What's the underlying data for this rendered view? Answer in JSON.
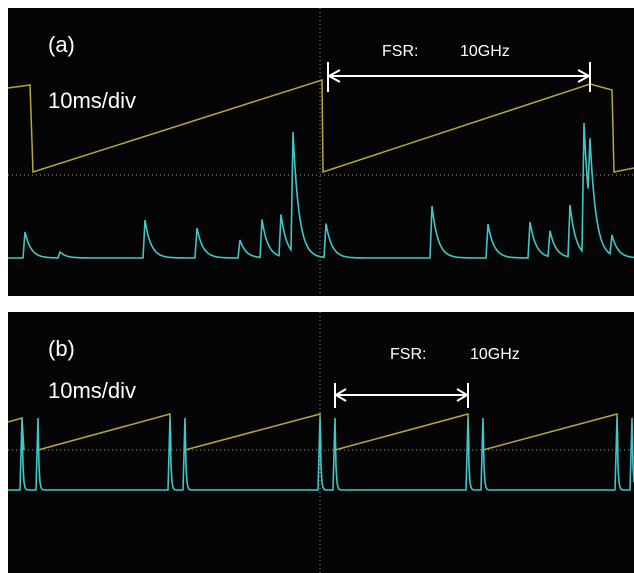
{
  "panels": [
    {
      "label": "(a)",
      "timebase": "10ms/div",
      "fsr_label": "FSR:",
      "fsr_value": "10GHz"
    },
    {
      "label": "(b)",
      "timebase": "10ms/div",
      "fsr_label": "FSR:",
      "fsr_value": "10GHz"
    }
  ]
}
